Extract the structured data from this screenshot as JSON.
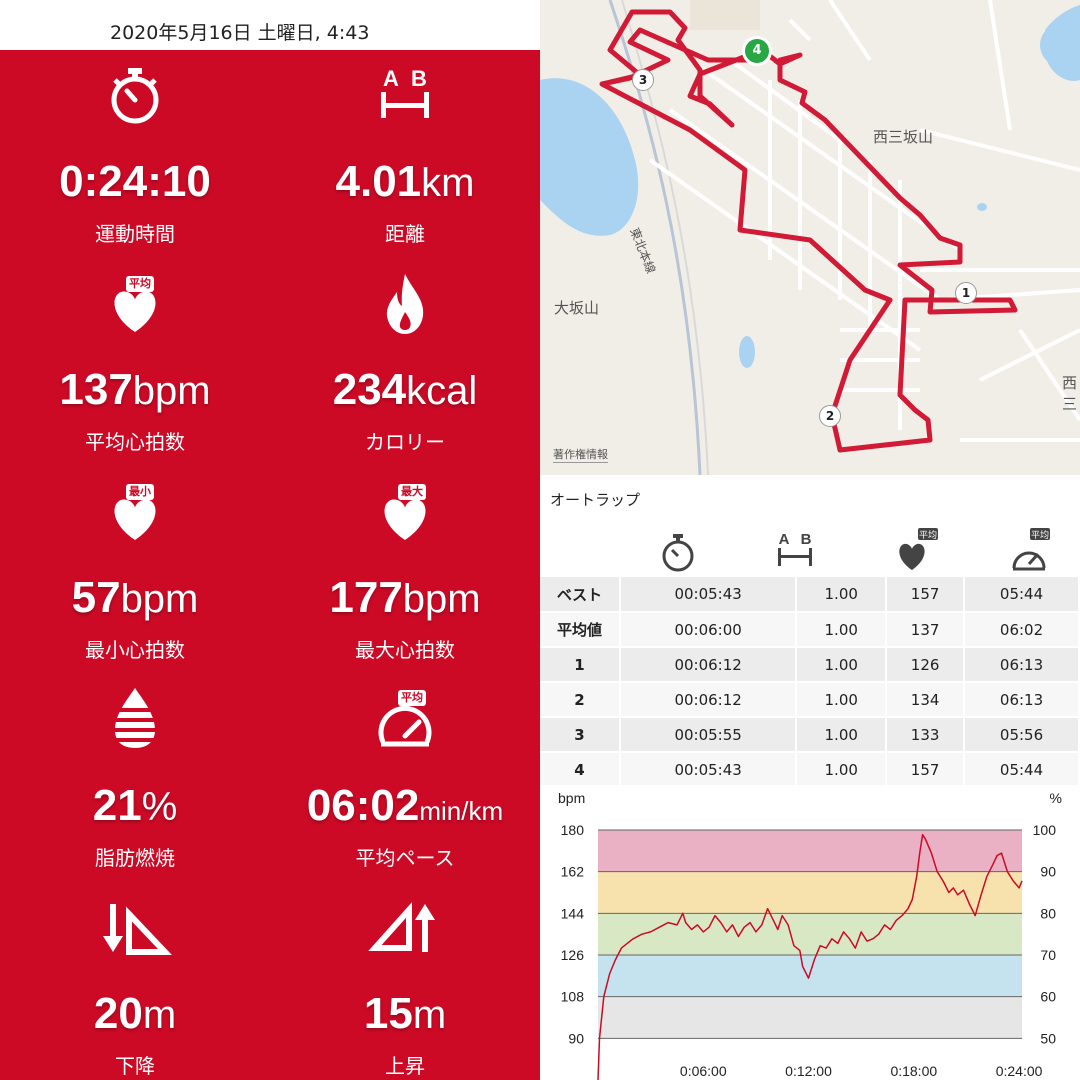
{
  "header": {
    "datetime": "2020年5月16日 土曜日, 4:43"
  },
  "colors": {
    "accent": "#cc0a26",
    "route": "#d11a35",
    "start_marker": "#27a844"
  },
  "stats": [
    {
      "icon": "stopwatch-icon",
      "value": "0:24:10",
      "unit": "",
      "label": "運動時間"
    },
    {
      "icon": "distance-ab-icon",
      "value": "4.01",
      "unit": "km",
      "label": "距離"
    },
    {
      "icon": "heart-icon",
      "badge": "平均",
      "value": "137",
      "unit": "bpm",
      "label": "平均心拍数"
    },
    {
      "icon": "flame-icon",
      "value": "234",
      "unit": "kcal",
      "label": "カロリー"
    },
    {
      "icon": "heart-icon",
      "badge": "最小",
      "value": "57",
      "unit": "bpm",
      "label": "最小心拍数"
    },
    {
      "icon": "heart-icon",
      "badge": "最大",
      "value": "177",
      "unit": "bpm",
      "label": "最大心拍数"
    },
    {
      "icon": "fat-burn-icon",
      "value": "21",
      "unit": "%",
      "label": "脂肪燃焼"
    },
    {
      "icon": "speedometer-icon",
      "badge": "平均",
      "value": "06:02",
      "unit": "min/km",
      "label": "平均ペース"
    },
    {
      "icon": "descent-icon",
      "value": "20",
      "unit": "m",
      "label": "下降"
    },
    {
      "icon": "ascent-icon",
      "value": "15",
      "unit": "m",
      "label": "上昇"
    }
  ],
  "map": {
    "labels": [
      "西三坂山",
      "東北本線",
      "大坂山",
      "西三"
    ],
    "copyright": "著作権情報",
    "markers": [
      "1",
      "2",
      "3",
      "4"
    ]
  },
  "laps": {
    "title": "オートラップ",
    "column_icons": [
      "stopwatch-icon",
      "distance-ab-icon",
      "heart-icon",
      "speedometer-icon"
    ],
    "column_badges": [
      "",
      "",
      "平均",
      "平均"
    ],
    "rows": [
      {
        "label": "ベスト",
        "time": "00:05:43",
        "dist": "1.00",
        "hr": "157",
        "pace": "05:44"
      },
      {
        "label": "平均値",
        "time": "00:06:00",
        "dist": "1.00",
        "hr": "137",
        "pace": "06:02"
      },
      {
        "label": "1",
        "time": "00:06:12",
        "dist": "1.00",
        "hr": "126",
        "pace": "06:13"
      },
      {
        "label": "2",
        "time": "00:06:12",
        "dist": "1.00",
        "hr": "134",
        "pace": "06:13"
      },
      {
        "label": "3",
        "time": "00:05:55",
        "dist": "1.00",
        "hr": "133",
        "pace": "05:56"
      },
      {
        "label": "4",
        "time": "00:05:43",
        "dist": "1.00",
        "hr": "157",
        "pace": "05:44"
      }
    ]
  },
  "chart_data": {
    "type": "line",
    "ylabel_left": "bpm",
    "ylabel_right": "%",
    "ylim": [
      72,
      180
    ],
    "yticks_left": [
      180,
      162,
      144,
      126,
      108,
      90
    ],
    "yticks_right": [
      100,
      90,
      80,
      70,
      60,
      50
    ],
    "xlim_seconds": [
      0,
      1450
    ],
    "xticks": [
      {
        "label": "0:06:00",
        "t": 360
      },
      {
        "label": "0:12:00",
        "t": 720
      },
      {
        "label": "0:18:00",
        "t": 1080
      },
      {
        "label": "0:24:00",
        "t": 1440
      }
    ],
    "zones": [
      {
        "from": 162,
        "to": 180,
        "color": "#eab0c4"
      },
      {
        "from": 144,
        "to": 162,
        "color": "#f7e2ad"
      },
      {
        "from": 126,
        "to": 144,
        "color": "#d9e8c4"
      },
      {
        "from": 108,
        "to": 126,
        "color": "#c4e3ef"
      },
      {
        "from": 90,
        "to": 108,
        "color": "#e6e6e6"
      }
    ],
    "line_color": "#cc0a26",
    "series": [
      {
        "t": [
          0,
          5,
          20,
          40,
          60,
          80,
          100,
          120,
          150,
          180,
          210,
          240,
          270,
          290,
          300,
          320,
          340,
          360,
          380,
          400,
          420,
          440,
          460,
          480,
          500,
          520,
          540,
          560,
          580,
          600,
          615,
          630,
          650,
          670,
          690,
          700,
          720,
          740,
          760,
          780,
          800,
          820,
          840,
          860,
          880,
          900,
          920,
          940,
          960,
          980,
          1000,
          1020,
          1040,
          1060,
          1075,
          1090,
          1100,
          1110,
          1120,
          1140,
          1160,
          1180,
          1200,
          1215,
          1230,
          1250,
          1270,
          1290,
          1310,
          1330,
          1350,
          1365,
          1380,
          1400,
          1420,
          1440,
          1450
        ],
        "hr": [
          72,
          90,
          108,
          118,
          124,
          129,
          131,
          133,
          135,
          136,
          138,
          140,
          139,
          144,
          140,
          137,
          139,
          136,
          138,
          143,
          140,
          136,
          139,
          134,
          138,
          140,
          136,
          139,
          146,
          141,
          137,
          143,
          139,
          130,
          128,
          121,
          116,
          124,
          130,
          129,
          133,
          131,
          136,
          133,
          129,
          136,
          132,
          133,
          135,
          139,
          137,
          141,
          143,
          146,
          150,
          160,
          170,
          178,
          176,
          170,
          162,
          158,
          153,
          155,
          152,
          154,
          148,
          143,
          152,
          160,
          165,
          169,
          170,
          162,
          158,
          155,
          158
        ]
      }
    ]
  }
}
